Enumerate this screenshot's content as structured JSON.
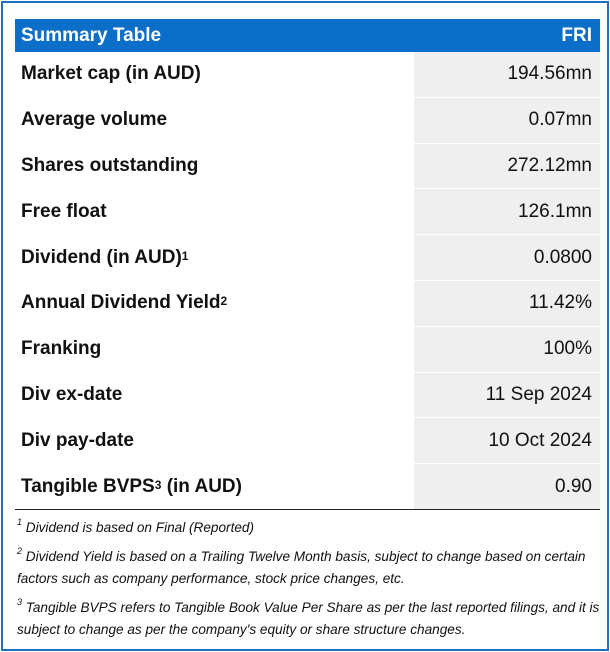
{
  "header": {
    "title": "Summary Table",
    "ticker": "FRI"
  },
  "rows": [
    {
      "label": "Market cap (in AUD)",
      "sup": "",
      "value": "194.56mn"
    },
    {
      "label": "Average volume",
      "sup": "",
      "value": "0.07mn"
    },
    {
      "label": "Shares outstanding",
      "sup": "",
      "value": "272.12mn"
    },
    {
      "label": "Free float",
      "sup": "",
      "value": "126.1mn"
    },
    {
      "label": "Dividend (in AUD)",
      "sup": "1",
      "value": "0.0800"
    },
    {
      "label": "Annual Dividend Yield",
      "sup": "2",
      "value": "11.42%"
    },
    {
      "label": "Franking",
      "sup": "",
      "value": "100%"
    },
    {
      "label": "Div ex-date",
      "sup": "",
      "value": "11 Sep 2024"
    },
    {
      "label": "Div pay-date",
      "sup": "",
      "value": "10 Oct 2024"
    },
    {
      "label": "Tangible BVPS",
      "sup": "3",
      "label_suffix": " (in AUD)",
      "value": "0.90"
    }
  ],
  "footnotes": [
    {
      "num": "1",
      "text": "Dividend is based on Final (Reported)"
    },
    {
      "num": "2",
      "text": "Dividend Yield is based on a Trailing Twelve Month basis, subject to change based on certain factors such as company performance, stock price changes, etc."
    },
    {
      "num": "3",
      "text": "Tangible BVPS refers to Tangible Book Value Per Share as per the last reported filings, and it is subject to change as per the company's equity or share structure changes."
    }
  ]
}
